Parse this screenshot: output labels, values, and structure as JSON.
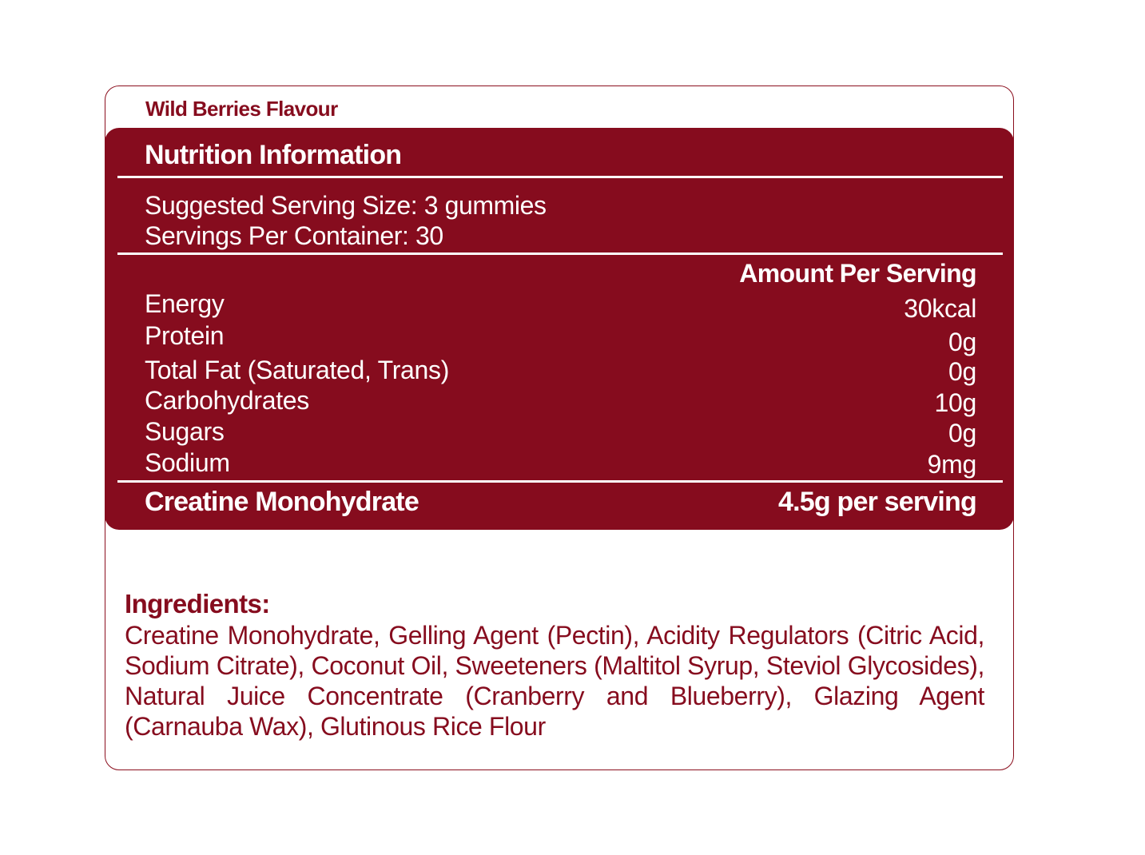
{
  "colors": {
    "brand": "#860c1e",
    "text_on_brand": "#ffffff",
    "background": "#ffffff"
  },
  "label": {
    "flavour": "Wild Berries Flavour"
  },
  "nutrition": {
    "title": "Nutrition Information",
    "serving_size": "Suggested Serving Size: 3 gummies",
    "servings_per_container": "Servings Per Container: 30",
    "amount_header": "Amount Per Serving",
    "rows": [
      {
        "name": "Energy",
        "value": "30kcal"
      },
      {
        "name": "Protein",
        "value": "0g"
      },
      {
        "name": "Total Fat (Saturated, Trans)",
        "value": "0g"
      },
      {
        "name": "Carbohydrates",
        "value": "10g"
      },
      {
        "name": "Sugars",
        "value": "0g"
      },
      {
        "name": "Sodium",
        "value": "9mg"
      }
    ],
    "highlight": {
      "name": "Creatine Monohydrate",
      "value": "4.5g per serving"
    }
  },
  "ingredients": {
    "heading": "Ingredients:",
    "text": "Creatine Monohydrate, Gelling Agent (Pectin), Acidity Regulators (Citric Acid, Sodium Citrate), Coconut Oil, Sweeteners (Maltitol Syrup, Steviol Glycosides), Natural Juice Concentrate (Cranberry and Blueberry), Glazing Agent (Carnauba Wax), Glutinous Rice Flour"
  }
}
